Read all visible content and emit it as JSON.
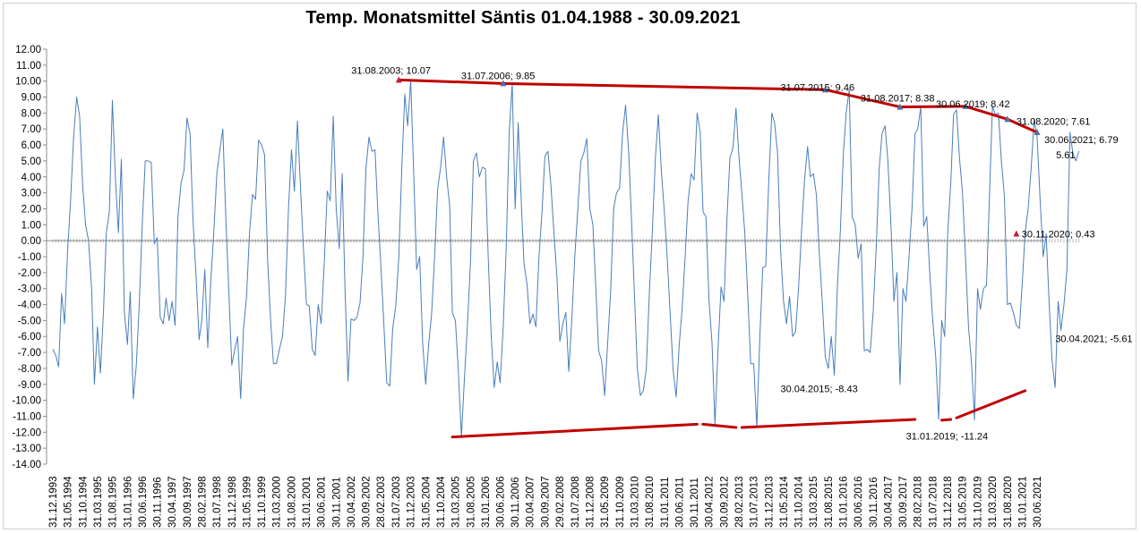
{
  "chart_data": {
    "type": "line",
    "title": "Temp. Monatsmittel Säntis 01.04.1988  - 30.09.2021",
    "xlabel": "",
    "ylabel": "",
    "ylim": [
      -14,
      12
    ],
    "y_ticks": [
      "12.00",
      "11.00",
      "10.00",
      "9.00",
      "8.00",
      "7.00",
      "6.00",
      "5.00",
      "4.00",
      "3.00",
      "2.00",
      "1.00",
      "0.00",
      "-1.00",
      "-2.00",
      "-3.00",
      "-4.00",
      "-5.00",
      "-6.00",
      "-7.00",
      "-8.00",
      "-9.00",
      "-10.00",
      "-11.00",
      "-12.00",
      "-13.00",
      "-14.00"
    ],
    "x_ticks": [
      "31.12.1993",
      "31.05.1994",
      "31.10.1994",
      "31.03.1995",
      "31.08.1995",
      "31.01.1996",
      "30.06.1996",
      "30.11.1996",
      "30.04.1997",
      "30.09.1997",
      "28.02.1998",
      "31.07.1998",
      "31.12.1998",
      "31.05.1999",
      "31.10.1999",
      "31.03.2000",
      "31.08.2000",
      "31.01.2001",
      "30.06.2001",
      "30.11.2001",
      "30.04.2002",
      "30.09.2002",
      "28.02.2003",
      "31.07.2003",
      "31.12.2003",
      "31.05.2004",
      "31.10.2004",
      "31.03.2005",
      "31.08.2005",
      "31.01.2006",
      "30.06.2006",
      "30.11.2006",
      "30.04.2007",
      "30.09.2007",
      "29.02.2008",
      "31.07.2008",
      "31.12.2008",
      "31.05.2009",
      "31.10.2009",
      "31.03.2010",
      "31.08.2010",
      "31.01.2011",
      "30.06.2011",
      "30.11.2011",
      "30.04.2012",
      "30.09.2012",
      "28.02.2013",
      "31.07.2013",
      "31.12.2013",
      "31.05.2014",
      "31.10.2014",
      "31.03.2015",
      "31.08.2015",
      "31.01.2016",
      "30.06.2016",
      "30.11.2016",
      "30.04.2017",
      "30.09.2017",
      "28.02.2018",
      "31.07.2018",
      "31.12.2018",
      "31.05.2019",
      "31.10.2019",
      "31.03.2020",
      "31.08.2020",
      "31.01.2021",
      "30.06.2021"
    ],
    "grid": false,
    "series_color": "#4a7ebb",
    "series": [
      {
        "x_start": "31.12.1993",
        "x_end": "30.09.2021",
        "values": [
          -6.8,
          -7.2,
          -7.9,
          -3.3,
          -5.2,
          -0.6,
          2.5,
          6.5,
          9.0,
          7.8,
          3.5,
          1.0,
          0.0,
          -3.0,
          -9.0,
          -5.4,
          -8.3,
          -4.5,
          0.5,
          1.8,
          8.8,
          4.0,
          0.5,
          5.1,
          -4.5,
          -6.5,
          -3.2,
          -9.9,
          -7.9,
          -4.0,
          1.0,
          5.0,
          5.0,
          4.9,
          -0.2,
          0.2,
          -4.8,
          -5.2,
          -3.6,
          -5.0,
          -3.8,
          -5.3,
          1.5,
          3.6,
          4.4,
          7.7,
          6.7,
          1.3,
          -2.2,
          -6.2,
          -5.0,
          -1.8,
          -6.7,
          -2.5,
          0.5,
          4.2,
          5.7,
          7.0,
          1.5,
          -3.0,
          -7.8,
          -6.8,
          -6.0,
          -9.9,
          -5.5,
          -3.5,
          0.5,
          2.9,
          2.6,
          6.3,
          6.0,
          5.4,
          -1.2,
          -5.0,
          -7.7,
          -7.7,
          -6.8,
          -6.0,
          -3.5,
          2.0,
          5.7,
          3.1,
          7.5,
          3.5,
          -0.5,
          -4.0,
          -4.1,
          -6.8,
          -7.2,
          -4.0,
          -5.2,
          -1.5,
          3.1,
          2.5,
          7.8,
          2.0,
          -0.5,
          4.2,
          -3.0,
          -8.8,
          -4.9,
          -5.0,
          -4.8,
          -3.9,
          -1.0,
          4.5,
          6.5,
          5.6,
          5.7,
          1.6,
          -1.5,
          -5.1,
          -8.9,
          -9.1,
          -5.5,
          -4.1,
          -1.0,
          4.5,
          9.2,
          7.2,
          10.07,
          4.1,
          -1.8,
          -1.0,
          -6.4,
          -9.0,
          -6.5,
          -4.6,
          -1.0,
          3.2,
          4.6,
          6.5,
          4.0,
          2.2,
          -4.5,
          -5.0,
          -8.2,
          -12.3,
          -8.7,
          -5.3,
          -1.4,
          5.0,
          5.5,
          4.0,
          4.6,
          4.5,
          -1.0,
          -6.0,
          -9.2,
          -7.6,
          -8.9,
          -5.5,
          -0.5,
          6.7,
          9.85,
          2.0,
          7.4,
          2.5,
          -1.4,
          -2.7,
          -5.2,
          -4.6,
          -5.4,
          -1.0,
          1.8,
          5.3,
          5.6,
          3.5,
          0.5,
          -2.3,
          -6.3,
          -5.2,
          -4.5,
          -8.2,
          -5.0,
          -1.0,
          2.0,
          5.0,
          5.5,
          6.4,
          2.0,
          1.0,
          -2.6,
          -6.9,
          -7.5,
          -9.7,
          -6.5,
          -3.2,
          2.0,
          3.0,
          3.3,
          6.7,
          8.5,
          5.6,
          1.5,
          -3.4,
          -8.0,
          -9.7,
          -9.4,
          -8.0,
          -3.2,
          0.6,
          5.2,
          7.9,
          4.4,
          1.8,
          -1.0,
          -4.6,
          -8.1,
          -9.8,
          -6.6,
          -4.3,
          -1.0,
          2.5,
          4.2,
          3.8,
          8.0,
          6.8,
          1.8,
          1.5,
          -3.7,
          -6.4,
          -11.5,
          -6.8,
          -2.9,
          -3.8,
          1.5,
          5.2,
          5.8,
          8.3,
          5.4,
          3.0,
          0.5,
          -3.5,
          -7.7,
          -7.7,
          -11.7,
          -6.2,
          -1.7,
          -1.6,
          3.8,
          8.0,
          7.4,
          5.5,
          -0.5,
          -3.8,
          -5.2,
          -3.5,
          -6.0,
          -5.7,
          -3.0,
          0.5,
          3.8,
          5.9,
          4.0,
          4.2,
          2.9,
          -0.8,
          -3.8,
          -7.3,
          -8.0,
          -6.0,
          -8.43,
          -3.0,
          0.6,
          5.5,
          8.0,
          9.46,
          1.5,
          1.0,
          -1.1,
          -0.2,
          -6.9,
          -6.8,
          -7.0,
          -4.5,
          -0.5,
          4.5,
          6.7,
          7.2,
          5.0,
          1.0,
          -3.8,
          -2.0,
          -9.0,
          -3.0,
          -3.8,
          -1.1,
          2.0,
          6.7,
          7.0,
          8.38,
          0.9,
          1.5,
          -2.0,
          -5.0,
          -7.3,
          -11.2,
          -5.0,
          -6.0,
          0.5,
          3.6,
          7.9,
          8.2,
          5.2,
          3.0,
          -1.0,
          -5.4,
          -7.7,
          -11.24,
          -3.0,
          -4.3,
          -3.0,
          -2.8,
          2.6,
          8.42,
          7.9,
          8.0,
          5.0,
          2.8,
          -4.0,
          -3.9,
          -4.5,
          -5.3,
          -5.5,
          -2.5,
          0.5,
          2.0,
          4.5,
          7.61,
          6.5,
          2.5,
          -1.0,
          0.43,
          -4.0,
          -7.5,
          -9.2,
          -3.8,
          -5.61,
          -4.0,
          -1.8,
          6.79,
          5.5,
          5.0,
          5.61
        ]
      }
    ],
    "annotations": [
      {
        "label": "31.08.2003; 10.07",
        "x": "31.08.2003",
        "y": 10.07
      },
      {
        "label": "31.07.2006; 9.85",
        "x": "31.07.2006",
        "y": 9.85
      },
      {
        "label": "31.07.2015; 9.46",
        "x": "31.07.2015",
        "y": 9.46
      },
      {
        "label": "31.08.2017; 8.38",
        "x": "31.08.2017",
        "y": 8.38
      },
      {
        "label": "30.06.2019; 8.42",
        "x": "30.06.2019",
        "y": 8.42
      },
      {
        "label": "31.08.2020; 7.61",
        "x": "31.08.2020",
        "y": 7.61
      },
      {
        "label": "30.06.2021; 6.79",
        "x": "30.06.2021",
        "y": 6.79
      },
      {
        "label": "5.61",
        "x": "30.09.2021",
        "y": 5.61
      },
      {
        "label": "30.11.2020; 0.43",
        "x": "30.11.2020",
        "y": 0.43
      },
      {
        "label": "30.04.2021; -5.61",
        "x": "30.04.2021",
        "y": -5.61
      },
      {
        "label": "30.04.2015; -8.43",
        "x": "30.04.2015",
        "y": -8.43
      },
      {
        "label": "31.01.2019; -11.24",
        "x": "31.01.2019",
        "y": -11.24
      }
    ],
    "marker_color": "#c0203a",
    "trend_color": "#c00000",
    "trend_upper": [
      [
        "31.08.2003",
        10.07
      ],
      [
        "31.07.2006",
        9.85
      ],
      [
        "31.07.2015",
        9.46
      ],
      [
        "31.08.2017",
        8.38
      ],
      [
        "30.06.2019",
        8.42
      ],
      [
        "31.08.2020",
        7.61
      ],
      [
        "30.06.2021",
        6.79
      ]
    ],
    "trend_lower": [
      [
        [
          "28.02.2005",
          -12.3
        ],
        [
          "31.12.2011",
          -11.5
        ]
      ],
      [
        [
          "28.02.2012",
          -11.5
        ],
        [
          "31.01.2013",
          -11.7
        ]
      ],
      [
        [
          "31.03.2013",
          -11.7
        ],
        [
          "31.01.2018",
          -11.2
        ]
      ],
      [
        [
          "31.10.2018",
          -11.25
        ],
        [
          "31.01.2019",
          -11.2
        ]
      ],
      [
        [
          "31.03.2019",
          -11.1
        ],
        [
          "28.02.2021",
          -9.4
        ]
      ]
    ]
  }
}
